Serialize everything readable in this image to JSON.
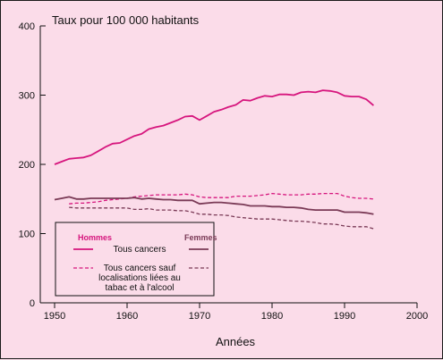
{
  "chart_data": {
    "type": "line",
    "ylabel": "Taux pour 100 000 habitants",
    "xlabel": "Années",
    "xlim": [
      1950,
      2000
    ],
    "ylim": [
      0,
      400
    ],
    "x_ticks": [
      1950,
      1960,
      1970,
      1980,
      1990,
      2000
    ],
    "y_ticks": [
      0,
      100,
      200,
      300,
      400
    ],
    "grid": false,
    "colors": {
      "hommes": "#d6157d",
      "femmes": "#7a3a56",
      "background": "#fbdce9"
    },
    "legend": {
      "placement": "bottom-left",
      "header_left": "Hommes",
      "header_right": "Femmes",
      "entry1": "Tous cancers",
      "entry2_line1": "Tous cancers sauf",
      "entry2_line2": "localisations liées au",
      "entry2_line3": "tabac et à l'alcool"
    },
    "series": [
      {
        "group": "Hommes",
        "label": "Tous cancers",
        "style": "solid",
        "color": "#d6157d",
        "x": [
          1950,
          1951,
          1952,
          1953,
          1954,
          1955,
          1956,
          1957,
          1958,
          1959,
          1960,
          1961,
          1962,
          1963,
          1964,
          1965,
          1966,
          1967,
          1968,
          1969,
          1970,
          1971,
          1972,
          1973,
          1974,
          1975,
          1976,
          1977,
          1978,
          1979,
          1980,
          1981,
          1982,
          1983,
          1984,
          1985,
          1986,
          1987,
          1988,
          1989,
          1990,
          1991,
          1992,
          1993,
          1994
        ],
        "y": [
          200,
          204,
          208,
          209,
          210,
          213,
          219,
          225,
          230,
          231,
          236,
          241,
          244,
          251,
          254,
          256,
          260,
          264,
          269,
          270,
          264,
          270,
          276,
          279,
          283,
          286,
          293,
          292,
          296,
          299,
          298,
          301,
          301,
          300,
          304,
          305,
          304,
          307,
          306,
          304,
          299,
          298,
          298,
          294,
          285
        ]
      },
      {
        "group": "Hommes",
        "label": "Tous cancers sauf localisations liées au tabac et à l'alcool",
        "style": "dashed",
        "color": "#d6157d",
        "x": [
          1952,
          1953,
          1954,
          1955,
          1956,
          1957,
          1958,
          1959,
          1960,
          1961,
          1962,
          1963,
          1964,
          1965,
          1966,
          1967,
          1968,
          1969,
          1970,
          1971,
          1972,
          1973,
          1974,
          1975,
          1976,
          1977,
          1978,
          1979,
          1980,
          1981,
          1982,
          1983,
          1984,
          1985,
          1986,
          1987,
          1988,
          1989,
          1990,
          1991,
          1992,
          1993,
          1994
        ],
        "y": [
          143,
          144,
          144,
          145,
          146,
          148,
          149,
          150,
          151,
          153,
          154,
          155,
          156,
          156,
          156,
          156,
          157,
          156,
          153,
          152,
          152,
          152,
          152,
          154,
          154,
          154,
          155,
          156,
          158,
          157,
          156,
          156,
          156,
          157,
          157,
          158,
          158,
          158,
          154,
          152,
          151,
          151,
          150
        ]
      },
      {
        "group": "Femmes",
        "label": "Tous cancers",
        "style": "solid",
        "color": "#7a3a56",
        "x": [
          1950,
          1951,
          1952,
          1953,
          1954,
          1955,
          1956,
          1957,
          1958,
          1959,
          1960,
          1961,
          1962,
          1963,
          1964,
          1965,
          1966,
          1967,
          1968,
          1969,
          1970,
          1971,
          1972,
          1973,
          1974,
          1975,
          1976,
          1977,
          1978,
          1979,
          1980,
          1981,
          1982,
          1983,
          1984,
          1985,
          1986,
          1987,
          1988,
          1989,
          1990,
          1991,
          1992,
          1993,
          1994
        ],
        "y": [
          149,
          151,
          153,
          150,
          150,
          151,
          151,
          151,
          151,
          151,
          151,
          152,
          150,
          151,
          150,
          149,
          149,
          148,
          148,
          148,
          143,
          144,
          145,
          145,
          144,
          143,
          142,
          140,
          140,
          140,
          139,
          139,
          138,
          138,
          137,
          135,
          134,
          134,
          134,
          134,
          131,
          131,
          131,
          130,
          128
        ]
      },
      {
        "group": "Femmes",
        "label": "Tous cancers sauf localisations liées au tabac et à l'alcool",
        "style": "dashed",
        "color": "#7a3a56",
        "x": [
          1952,
          1953,
          1954,
          1955,
          1956,
          1957,
          1958,
          1959,
          1960,
          1961,
          1962,
          1963,
          1964,
          1965,
          1966,
          1967,
          1968,
          1969,
          1970,
          1971,
          1972,
          1973,
          1974,
          1975,
          1976,
          1977,
          1978,
          1979,
          1980,
          1981,
          1982,
          1983,
          1984,
          1985,
          1986,
          1987,
          1988,
          1989,
          1990,
          1991,
          1992,
          1993,
          1994
        ],
        "y": [
          138,
          137,
          137,
          137,
          137,
          137,
          137,
          137,
          137,
          135,
          135,
          136,
          134,
          134,
          134,
          133,
          133,
          131,
          128,
          128,
          127,
          127,
          126,
          124,
          123,
          122,
          121,
          121,
          121,
          120,
          119,
          118,
          118,
          117,
          116,
          114,
          114,
          113,
          111,
          110,
          110,
          110,
          107
        ]
      }
    ]
  }
}
